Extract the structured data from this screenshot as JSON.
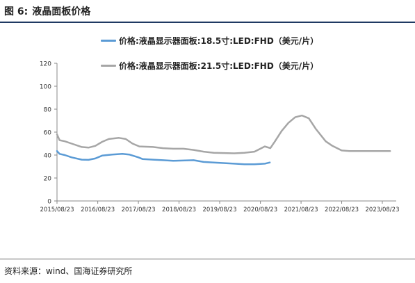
{
  "figure": {
    "number": "图 6:",
    "title": "液晶面板价格"
  },
  "source": "资料来源：wind、国海证券研究所",
  "chart_data": {
    "type": "line",
    "title": "液晶面板价格",
    "xlabel": "",
    "ylabel": "",
    "ylim": [
      0,
      120
    ],
    "yticks": [
      0,
      20,
      40,
      60,
      80,
      100,
      120
    ],
    "xlim": [
      "2015-08-23",
      "2023-08-23"
    ],
    "xticks": [
      "2015/08/23",
      "2016/08/23",
      "2017/08/23",
      "2018/08/23",
      "2019/08/23",
      "2020/08/23",
      "2021/08/23",
      "2022/08/23",
      "2023/08/23"
    ],
    "grid": false,
    "legend_position": "top",
    "series": [
      {
        "name": "价格:液晶显示器面板:18.5寸:LED:FHD（美元/片）",
        "color": "#5b9bd5",
        "points": [
          [
            "2015-08-23",
            43.5
          ],
          [
            "2015-09-15",
            41
          ],
          [
            "2015-11-01",
            40
          ],
          [
            "2016-01-01",
            38
          ],
          [
            "2016-04-01",
            36
          ],
          [
            "2016-06-01",
            35.8
          ],
          [
            "2016-08-01",
            37
          ],
          [
            "2016-10-01",
            39.5
          ],
          [
            "2017-01-01",
            40.5
          ],
          [
            "2017-04-01",
            41
          ],
          [
            "2017-06-01",
            40.5
          ],
          [
            "2017-08-23",
            38
          ],
          [
            "2017-10-01",
            36.5
          ],
          [
            "2018-01-01",
            36
          ],
          [
            "2018-04-01",
            35.5
          ],
          [
            "2018-07-01",
            35
          ],
          [
            "2019-01-01",
            35.5
          ],
          [
            "2019-04-01",
            34
          ],
          [
            "2019-07-01",
            33.5
          ],
          [
            "2020-01-01",
            32.5
          ],
          [
            "2020-04-01",
            32
          ],
          [
            "2020-07-01",
            32
          ],
          [
            "2020-10-01",
            32.5
          ],
          [
            "2020-11-15",
            33.5
          ]
        ]
      },
      {
        "name": "价格:液晶显示器面板:21.5寸:LED:FHD（美元/片）",
        "color": "#a6a6a6",
        "points": [
          [
            "2015-08-23",
            58
          ],
          [
            "2015-09-15",
            53
          ],
          [
            "2015-11-01",
            52
          ],
          [
            "2016-01-01",
            50
          ],
          [
            "2016-04-01",
            47
          ],
          [
            "2016-06-01",
            46.5
          ],
          [
            "2016-08-01",
            48
          ],
          [
            "2016-10-01",
            51.5
          ],
          [
            "2016-12-01",
            54
          ],
          [
            "2017-03-01",
            55
          ],
          [
            "2017-05-01",
            54
          ],
          [
            "2017-07-01",
            50
          ],
          [
            "2017-09-01",
            47.5
          ],
          [
            "2018-01-01",
            47
          ],
          [
            "2018-04-01",
            46
          ],
          [
            "2018-07-01",
            45.5
          ],
          [
            "2018-10-01",
            45.5
          ],
          [
            "2019-01-01",
            44.5
          ],
          [
            "2019-04-01",
            43
          ],
          [
            "2019-07-01",
            42
          ],
          [
            "2020-01-01",
            41.5
          ],
          [
            "2020-04-01",
            42
          ],
          [
            "2020-07-01",
            43
          ],
          [
            "2020-10-01",
            47.5
          ],
          [
            "2020-11-20",
            46
          ],
          [
            "2021-01-01",
            52
          ],
          [
            "2021-03-01",
            61
          ],
          [
            "2021-05-01",
            68
          ],
          [
            "2021-07-01",
            73
          ],
          [
            "2021-09-01",
            74.5
          ],
          [
            "2021-11-01",
            72
          ],
          [
            "2022-01-01",
            63
          ],
          [
            "2022-04-01",
            52
          ],
          [
            "2022-06-01",
            48
          ],
          [
            "2022-08-23",
            44
          ],
          [
            "2022-11-01",
            43.5
          ],
          [
            "2023-08-23",
            43.5
          ],
          [
            "2023-11-01",
            43.5
          ]
        ]
      }
    ]
  }
}
